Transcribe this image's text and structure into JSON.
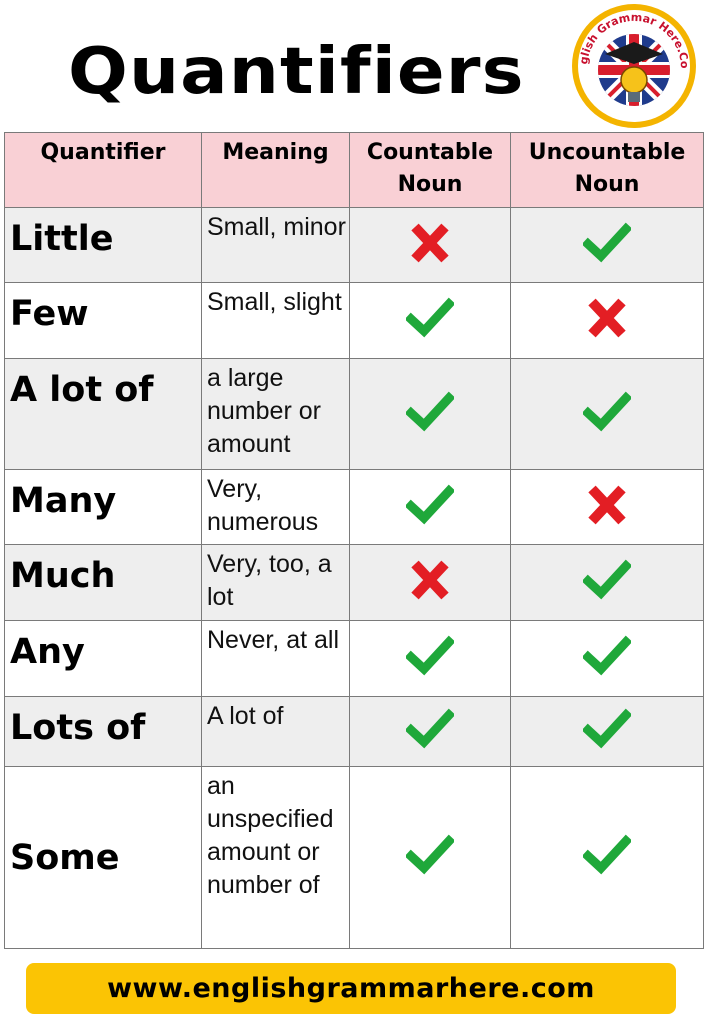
{
  "title": "Quantifiers",
  "logo": {
    "text": "English Grammar Here.Com",
    "icon": "graduation-cap-lightbulb-flag-icon",
    "colors": {
      "ring": "#f4b400",
      "flag_red": "#d81e2c",
      "flag_blue": "#1f3b8c"
    }
  },
  "table": {
    "headers": {
      "quantifier": "Quantifier",
      "meaning": "Meaning",
      "countable": [
        "Countable",
        "Noun"
      ],
      "uncountable": [
        "Uncountable",
        "Noun"
      ]
    },
    "rows": [
      {
        "quantifier": "Little",
        "meaning": "Small, minor",
        "countable": false,
        "uncountable": true
      },
      {
        "quantifier": "Few",
        "meaning": "Small, slight",
        "countable": true,
        "uncountable": false
      },
      {
        "quantifier": "A lot of",
        "meaning": "a large number or amount",
        "countable": true,
        "uncountable": true
      },
      {
        "quantifier": "Many",
        "meaning": "Very, numerous",
        "countable": true,
        "uncountable": false
      },
      {
        "quantifier": "Much",
        "meaning": "Very, too, a lot",
        "countable": false,
        "uncountable": true
      },
      {
        "quantifier": "Any",
        "meaning": "Never, at all",
        "countable": true,
        "uncountable": true
      },
      {
        "quantifier": "Lots of",
        "meaning": "A lot of",
        "countable": true,
        "uncountable": true
      },
      {
        "quantifier": "Some",
        "meaning": "an unspecified amount or number of",
        "countable": true,
        "uncountable": true
      }
    ],
    "icons": {
      "yes": "check-icon",
      "no": "cross-icon"
    },
    "colors": {
      "header_bg": "#f9d0d5",
      "check": "#1fa83a",
      "cross": "#e31e24",
      "stripe": "#eeeeee"
    }
  },
  "footer": {
    "url": "www.englishgrammarhere.com",
    "bg": "#fbc404"
  }
}
